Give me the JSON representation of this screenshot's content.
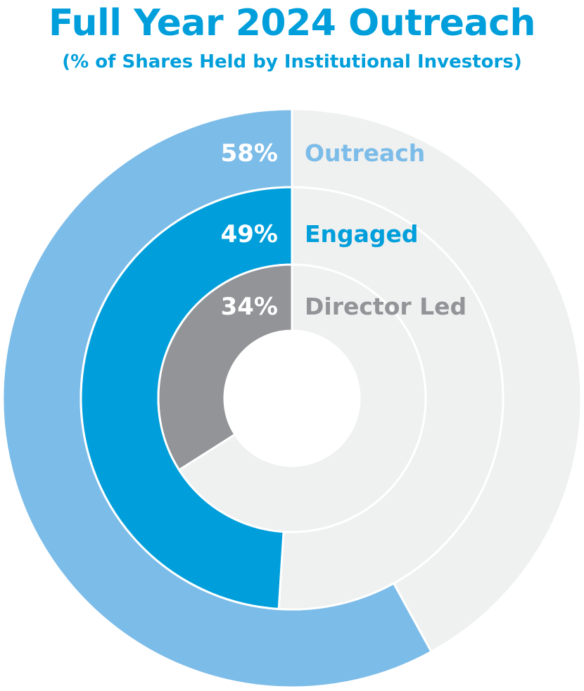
{
  "header": {
    "title": "Full Year 2024 Outreach",
    "subtitle": "(% of Shares Held by Institutional Investors)"
  },
  "colors": {
    "title": "#009FDB",
    "remainder": "#EFF0F0",
    "divider": "#FFFFFF"
  },
  "chart_data": {
    "type": "pie",
    "subtype": "nested-donut",
    "title": "Full Year 2024 Outreach",
    "subtitle": "(% of Shares Held by Institutional Investors)",
    "series": [
      {
        "name": "Outreach",
        "value": 58,
        "label": "58%",
        "color": "#7CBCE8"
      },
      {
        "name": "Engaged",
        "value": 49,
        "label": "49%",
        "color": "#009FDB"
      },
      {
        "name": "Director Led",
        "value": 34,
        "label": "34%",
        "color": "#939498"
      }
    ],
    "max": 100,
    "direction": "counterclockwise-from-top"
  }
}
